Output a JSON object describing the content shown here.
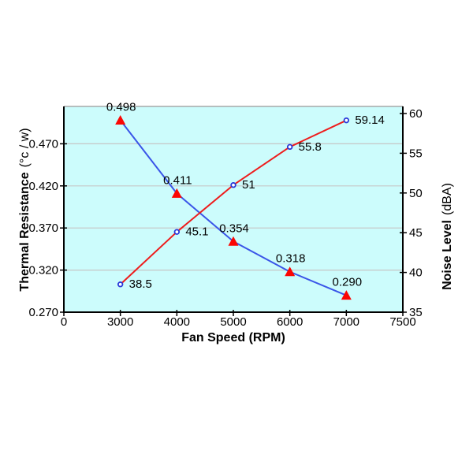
{
  "chart_data": {
    "type": "line",
    "title": "",
    "xlabel": "Fan Speed (RPM)",
    "y_left_label": "Thermal Resistance",
    "y_left_unit": "(°c / w)",
    "y_right_label": "Noise Level",
    "y_right_unit": "(dBA)",
    "x_tick_labels": [
      "0",
      "3000",
      "4000",
      "5000",
      "6000",
      "7000",
      "7500"
    ],
    "y_left_tick_labels": [
      "0.270",
      "0.320",
      "0.370",
      "0.420",
      "0.470"
    ],
    "y_right_tick_labels": [
      "35",
      "40",
      "45",
      "50",
      "55",
      "60"
    ],
    "x": [
      3000,
      4000,
      5000,
      6000,
      7000
    ],
    "series": [
      {
        "name": "Thermal Resistance",
        "axis": "left",
        "line_color": "#3a55e8",
        "marker": "triangle",
        "marker_color": "#fb0603",
        "values": [
          0.498,
          0.411,
          0.354,
          0.318,
          0.29
        ],
        "point_labels": [
          "0.498",
          "0.411",
          "0.354",
          "0.318",
          "0.290"
        ]
      },
      {
        "name": "Noise Level",
        "axis": "right",
        "line_color": "#ee1c1c",
        "marker": "circle",
        "marker_color": "#2737d8",
        "values": [
          38.5,
          45.1,
          51,
          55.8,
          59.14
        ],
        "point_labels": [
          "38.5",
          "45.1",
          "51",
          "55.8",
          "59.14"
        ]
      }
    ],
    "axes": {
      "x": {
        "ticks": [
          0,
          3000,
          4000,
          5000,
          6000,
          7000,
          7500
        ],
        "spacing": "categorical-equal"
      },
      "y_left": {
        "min": 0.27,
        "max": 0.47,
        "tick_step": 0.05
      },
      "y_right": {
        "min": 35,
        "max": 60,
        "tick_step": 5
      }
    },
    "grid": true,
    "legend": "none",
    "colors": {
      "plot_bg": "#ccfcfc",
      "grid": "#c6c6c6",
      "axis": "#000000",
      "top_border": "#999999",
      "text": "#000000"
    }
  }
}
